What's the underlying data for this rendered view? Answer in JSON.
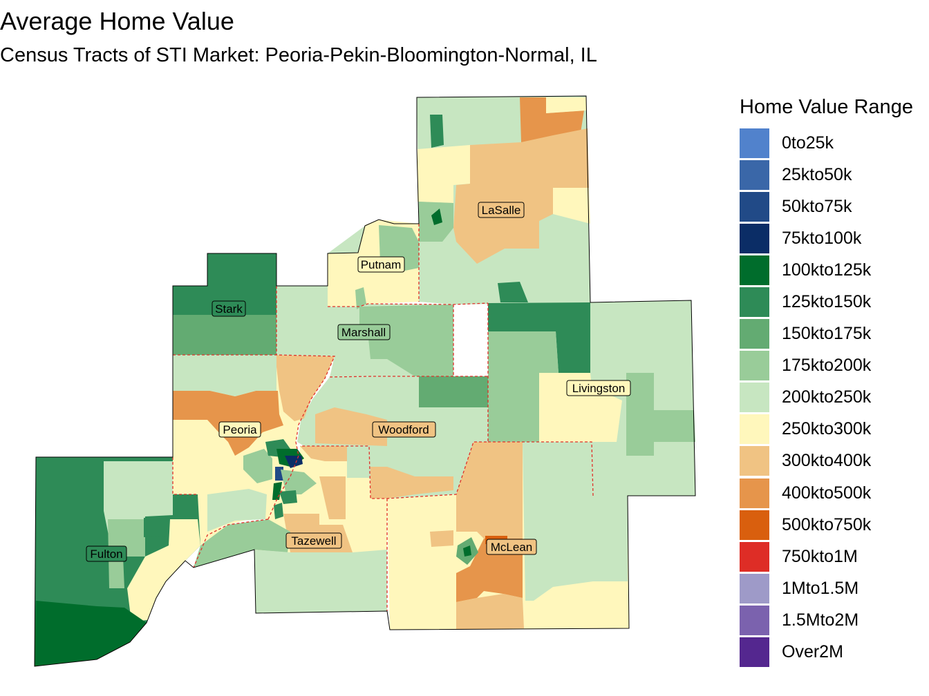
{
  "title": "Average Home Value",
  "subtitle": "Census Tracts of STI Market: Peoria-Pekin-Bloomington-Normal, IL",
  "legend": {
    "title": "Home Value Range",
    "items": [
      {
        "label": "0to25k",
        "color": "#5182cc"
      },
      {
        "label": "25kto50k",
        "color": "#3a67a8"
      },
      {
        "label": "50kto75k",
        "color": "#214a87"
      },
      {
        "label": "75kto100k",
        "color": "#0b2d66"
      },
      {
        "label": "100kto125k",
        "color": "#006d2c"
      },
      {
        "label": "125kto150k",
        "color": "#2e8b57"
      },
      {
        "label": "150kto175k",
        "color": "#63ab72"
      },
      {
        "label": "175kto200k",
        "color": "#99cc99"
      },
      {
        "label": "200kto250k",
        "color": "#c7e6c1"
      },
      {
        "label": "250kto300k",
        "color": "#fff7bc"
      },
      {
        "label": "300kto400k",
        "color": "#f0c383"
      },
      {
        "label": "400kto500k",
        "color": "#e6954b"
      },
      {
        "label": "500kto750k",
        "color": "#d95f0e"
      },
      {
        "label": "750kto1M",
        "color": "#de2d26"
      },
      {
        "label": "1Mto1.5M",
        "color": "#9e9ac8"
      },
      {
        "label": "1.5Mto2M",
        "color": "#7b62ae"
      },
      {
        "label": "Over2M",
        "color": "#54278f"
      }
    ]
  },
  "counties": [
    {
      "name": "LaSalle"
    },
    {
      "name": "Putnam"
    },
    {
      "name": "Stark"
    },
    {
      "name": "Marshall"
    },
    {
      "name": "Livingston"
    },
    {
      "name": "Peoria"
    },
    {
      "name": "Woodford"
    },
    {
      "name": "Fulton"
    },
    {
      "name": "Tazewell"
    },
    {
      "name": "McLean"
    }
  ],
  "border_color": "#e0302a"
}
